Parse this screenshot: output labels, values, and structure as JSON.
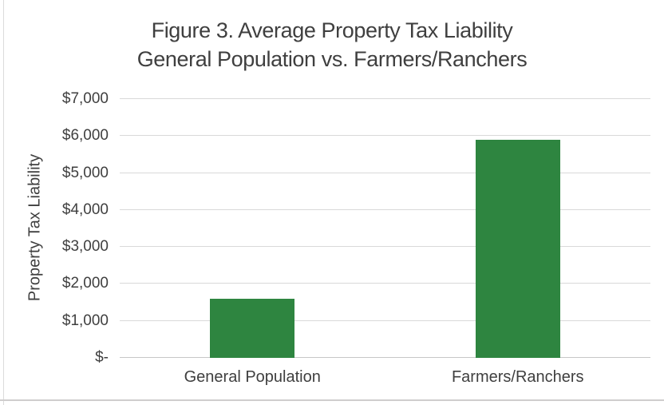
{
  "page": {
    "background": "#ffffff",
    "left_edge_color": "#dcdcdc",
    "bottom_edge_color": "#cfcdcd"
  },
  "chart_data": {
    "type": "bar",
    "title_lines": [
      "Figure 3. Average Property Tax Liability",
      "General Population vs. Farmers/Ranchers"
    ],
    "categories": [
      "General Population",
      "Farmers/Ranchers"
    ],
    "values": [
      1600,
      5900
    ],
    "xlabel": "",
    "ylabel": "Property Tax Liability",
    "ylim": [
      0,
      7000
    ],
    "ytick_step": 1000,
    "ytick_labels": [
      "$-",
      "$1,000",
      "$2,000",
      "$3,000",
      "$4,000",
      "$5,000",
      "$6,000",
      "$7,000"
    ],
    "grid": true,
    "legend": false,
    "bar_color": "#2e8540",
    "gridline_color": "#d9d9d9",
    "axis_line_color": "#c7c7c7",
    "text_color": "#3f3f3f"
  }
}
